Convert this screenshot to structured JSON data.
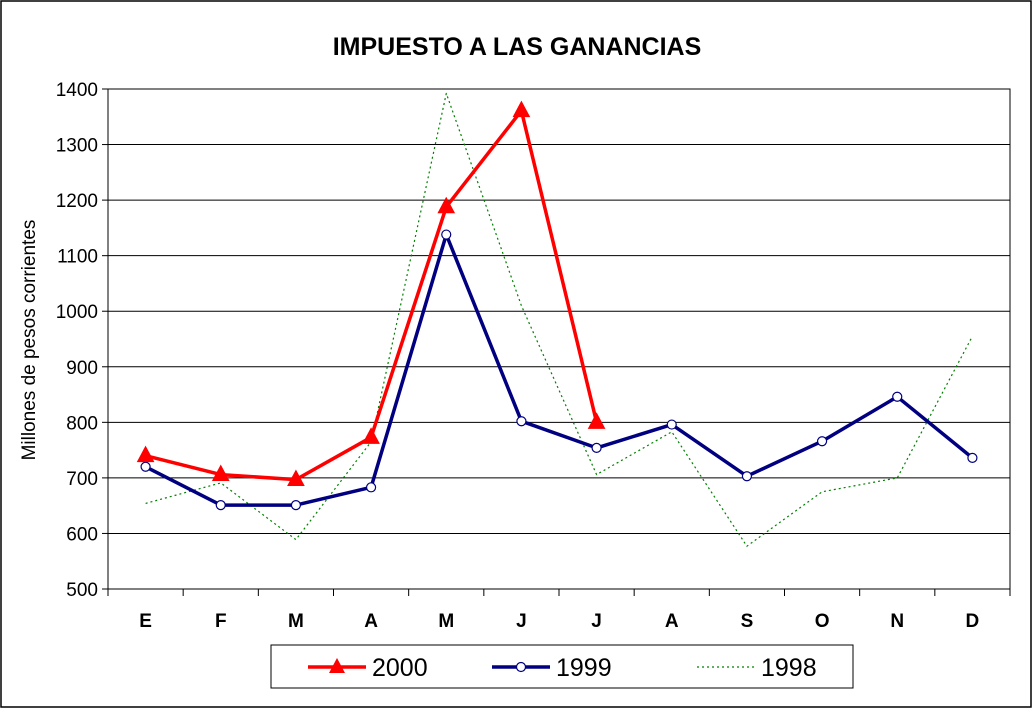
{
  "chart_data": {
    "type": "line",
    "title": "IMPUESTO A LAS GANANCIAS",
    "ylabel": "Millones de pesos corrientes",
    "xlabel": "",
    "ylim": [
      500,
      1400
    ],
    "yticks": [
      "500",
      "600",
      "700",
      "800",
      "900",
      "1000",
      "1100",
      "1200",
      "1300",
      "1400"
    ],
    "categories": [
      "E",
      "F",
      "M",
      "A",
      "M",
      "J",
      "J",
      "A",
      "S",
      "O",
      "N",
      "D"
    ],
    "grid": true,
    "legend_position": "bottom",
    "series": [
      {
        "name": "2000",
        "color": "#ff0000",
        "style": "solid-thick",
        "marker": "triangle",
        "values": [
          740,
          706,
          697,
          773,
          1188,
          1361,
          800,
          null,
          null,
          null,
          null,
          null
        ]
      },
      {
        "name": "1999",
        "color": "#000080",
        "style": "solid-thick",
        "marker": "circle",
        "values": [
          720,
          651,
          651,
          683,
          1138,
          802,
          754,
          796,
          703,
          766,
          846,
          736
        ]
      },
      {
        "name": "1998",
        "color": "#008000",
        "style": "dotted",
        "marker": "none",
        "values": [
          654,
          691,
          589,
          765,
          1392,
          1010,
          706,
          783,
          577,
          675,
          700,
          955
        ]
      }
    ]
  }
}
